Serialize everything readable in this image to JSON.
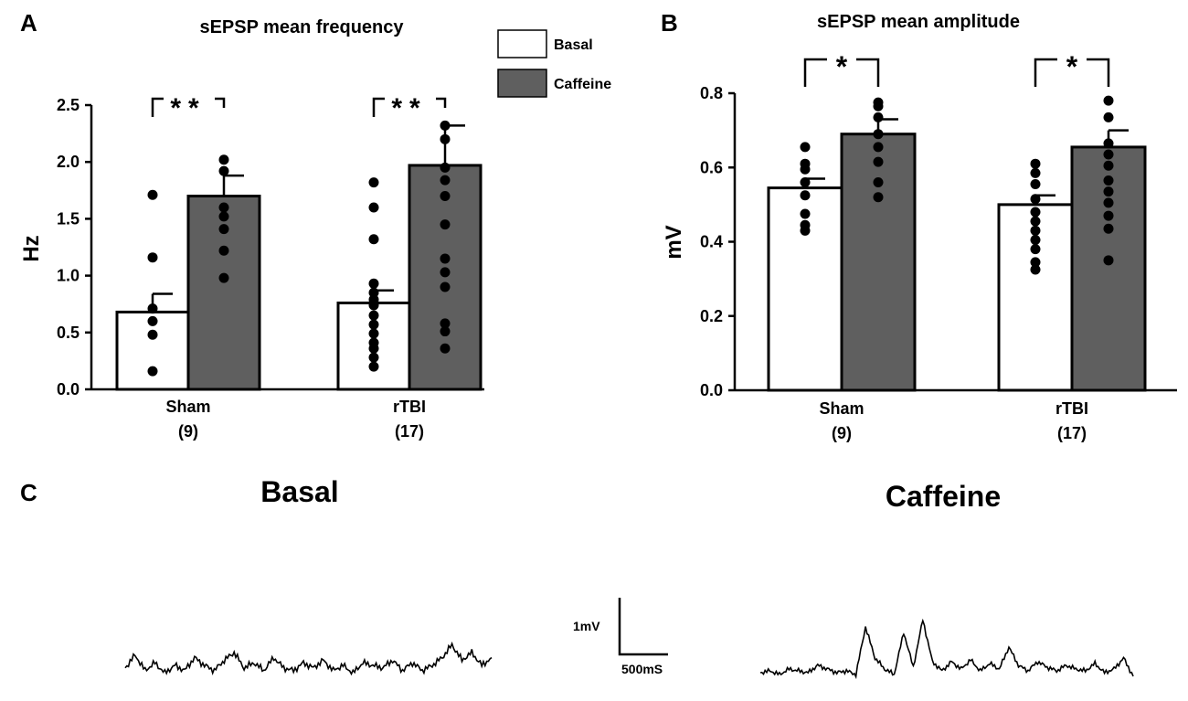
{
  "panels": {
    "a": {
      "letter": "A"
    },
    "b": {
      "letter": "B"
    },
    "c": {
      "letter": "C"
    }
  },
  "legend": {
    "items": [
      {
        "label": "Basal",
        "color": "#ffffff"
      },
      {
        "label": "Caffeine",
        "color": "#5f5f5f"
      }
    ]
  },
  "chart_data": [
    {
      "type": "bar",
      "title": "sEPSP mean frequency",
      "xlabel": "",
      "ylabel": "Hz",
      "ylim": [
        0,
        2.5
      ],
      "yticks": [
        "0.0",
        "0.5",
        "1.0",
        "1.5",
        "2.0",
        "2.5"
      ],
      "categories": [
        "Sham",
        "rTBI"
      ],
      "category_n": [
        "(9)",
        "(17)"
      ],
      "series": [
        {
          "name": "Basal",
          "color": "#ffffff",
          "values": [
            0.68,
            0.76
          ],
          "sem": [
            0.16,
            0.11
          ],
          "points": [
            [
              1.71,
              1.16,
              0.71,
              0.6,
              0.48,
              0.16
            ],
            [
              1.82,
              1.6,
              1.32,
              0.93,
              0.85,
              0.79,
              0.74,
              0.65,
              0.57,
              0.49,
              0.41,
              0.36,
              0.28,
              0.2
            ]
          ]
        },
        {
          "name": "Caffeine",
          "color": "#5f5f5f",
          "values": [
            1.7,
            1.97
          ],
          "sem": [
            0.18,
            0.35
          ],
          "points": [
            [
              2.02,
              1.92,
              1.6,
              1.52,
              1.41,
              1.22,
              0.98
            ],
            [
              2.32,
              2.2,
              1.95,
              1.84,
              1.7,
              1.45,
              1.15,
              1.03,
              0.9,
              0.58,
              0.51,
              0.36
            ]
          ]
        }
      ],
      "significance": [
        "**",
        "**"
      ]
    },
    {
      "type": "bar",
      "title": "sEPSP mean amplitude",
      "xlabel": "",
      "ylabel": "mV",
      "ylim": [
        0,
        0.8
      ],
      "yticks": [
        "0.0",
        "0.2",
        "0.4",
        "0.6",
        "0.8"
      ],
      "categories": [
        "Sham",
        "rTBI"
      ],
      "category_n": [
        "(9)",
        "(17)"
      ],
      "series": [
        {
          "name": "Basal",
          "color": "#ffffff",
          "values": [
            0.545,
            0.5
          ],
          "sem": [
            0.025,
            0.025
          ],
          "points": [
            [
              0.655,
              0.61,
              0.595,
              0.56,
              0.525,
              0.475,
              0.445,
              0.43
            ],
            [
              0.61,
              0.585,
              0.555,
              0.515,
              0.48,
              0.455,
              0.43,
              0.405,
              0.38,
              0.345,
              0.325
            ]
          ]
        },
        {
          "name": "Caffeine",
          "color": "#5f5f5f",
          "values": [
            0.69,
            0.655
          ],
          "sem": [
            0.04,
            0.045
          ],
          "points": [
            [
              0.775,
              0.765,
              0.735,
              0.69,
              0.655,
              0.615,
              0.56,
              0.52
            ],
            [
              0.78,
              0.735,
              0.665,
              0.635,
              0.605,
              0.565,
              0.535,
              0.505,
              0.47,
              0.435,
              0.35
            ]
          ]
        }
      ],
      "significance": [
        "*",
        "*"
      ]
    }
  ],
  "traces": {
    "basal_label": "Basal",
    "caffeine_label": "Caffeine",
    "scalebar": {
      "y_label": "1mV",
      "x_label": "500mS"
    },
    "basal_trace": [
      0.4,
      0.9,
      0.3,
      0.6,
      0.2,
      0.5,
      0.3,
      0.8,
      0.5,
      0.3,
      0.7,
      1.0,
      0.4,
      0.6,
      0.3,
      0.8,
      0.4,
      0.3,
      0.6,
      0.4,
      0.7,
      0.3,
      0.5,
      0.2,
      0.6,
      0.5,
      0.4,
      0.7,
      0.3,
      0.6,
      0.3,
      0.5,
      0.8,
      1.3,
      0.7,
      1.0,
      0.5,
      0.8
    ],
    "caffeine_trace": [
      0.4,
      0.5,
      0.3,
      0.6,
      0.5,
      0.4,
      0.8,
      0.6,
      0.4,
      0.5,
      0.3,
      2.9,
      1.2,
      0.6,
      0.3,
      2.6,
      0.7,
      3.3,
      1.0,
      0.5,
      1.0,
      0.6,
      1.1,
      0.5,
      0.9,
      0.6,
      1.8,
      0.8,
      0.5,
      1.0,
      0.7,
      0.5,
      0.8,
      0.6,
      0.5,
      0.9,
      0.4,
      0.6,
      1.2,
      0.2
    ]
  }
}
